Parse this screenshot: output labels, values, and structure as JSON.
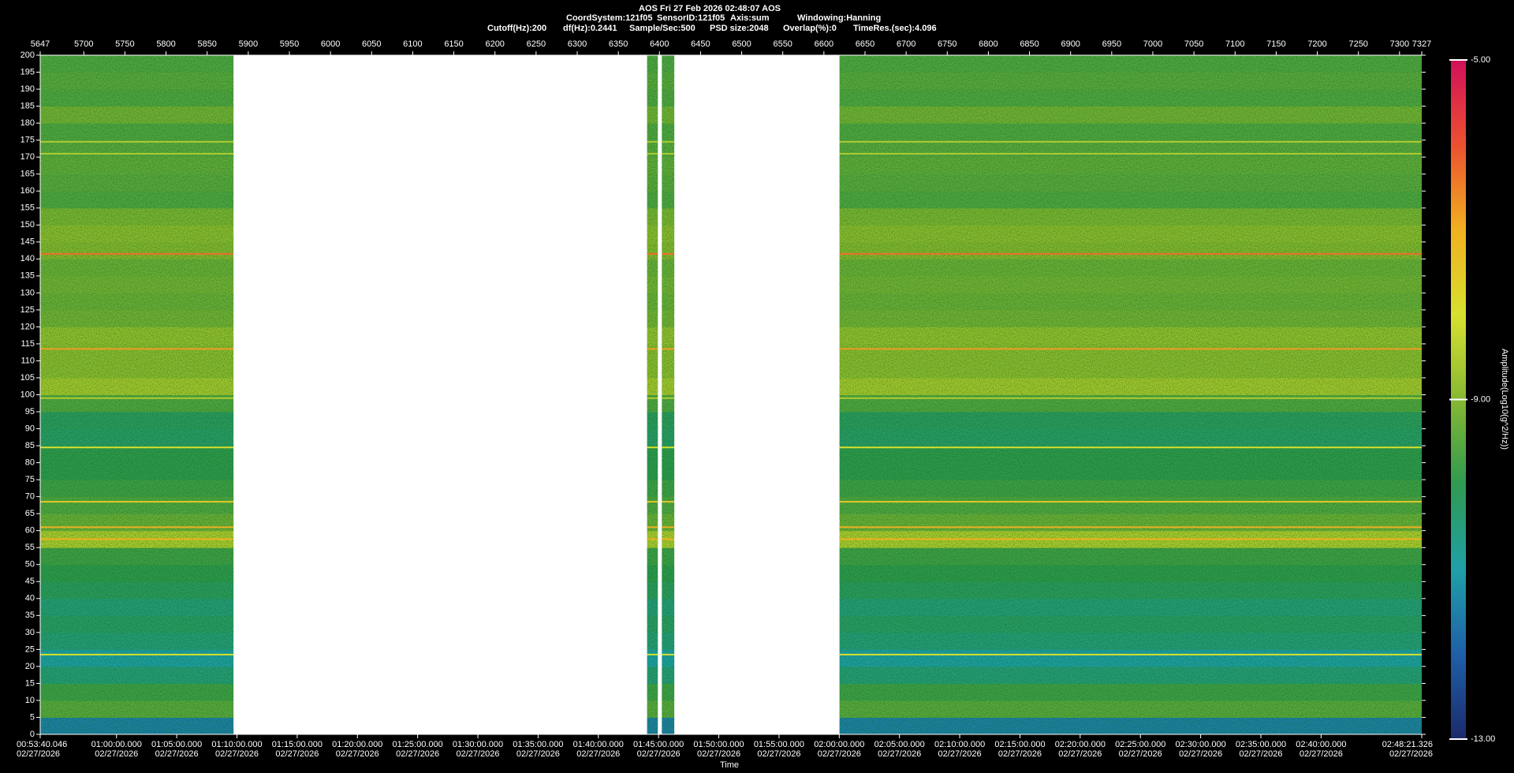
{
  "header": {
    "title": "AOS  Fri 27 Feb 2026 02:48:07  AOS",
    "line2": [
      "CoordSystem:121f05",
      "SensorID:121f05",
      "Axis:sum",
      "Windowing:Hanning"
    ],
    "line3": [
      "Cutoff(Hz):200",
      "df(Hz):0.2441",
      "Sample/Sec:500",
      "PSD size:2048",
      "Overlap(%):0",
      "TimeRes.(sec):4.096"
    ]
  },
  "chart_data": {
    "type": "spectrogram",
    "xlabel": "Time",
    "xlim": [
      5647,
      7327
    ],
    "xticks": [
      5647,
      5700,
      5750,
      5800,
      5850,
      5900,
      5950,
      6000,
      6050,
      6100,
      6150,
      6200,
      6250,
      6300,
      6350,
      6400,
      6450,
      6500,
      6550,
      6600,
      6650,
      6700,
      6750,
      6800,
      6850,
      6900,
      6950,
      7000,
      7050,
      7100,
      7150,
      7200,
      7250,
      7300,
      7327
    ],
    "x2lim": [
      3220.046,
      10101.326
    ],
    "x2ticks": [
      {
        "value": 3220.046,
        "label": "00:53:40.046"
      },
      {
        "value": 3600,
        "label": "01:00:00.000"
      },
      {
        "value": 3900,
        "label": "01:05:00.000"
      },
      {
        "value": 4200,
        "label": "01:10:00.000"
      },
      {
        "value": 4500,
        "label": "01:15:00.000"
      },
      {
        "value": 4800,
        "label": "01:20:00.000"
      },
      {
        "value": 5100,
        "label": "01:25:00.000"
      },
      {
        "value": 5400,
        "label": "01:30:00.000"
      },
      {
        "value": 5700,
        "label": "01:35:00.000"
      },
      {
        "value": 6000,
        "label": "01:40:00.000"
      },
      {
        "value": 6300,
        "label": "01:45:00.000"
      },
      {
        "value": 6600,
        "label": "01:50:00.000"
      },
      {
        "value": 6900,
        "label": "01:55:00.000"
      },
      {
        "value": 7200,
        "label": "02:00:00.000"
      },
      {
        "value": 7500,
        "label": "02:05:00.000"
      },
      {
        "value": 7800,
        "label": "02:10:00.000"
      },
      {
        "value": 8100,
        "label": "02:15:00.000"
      },
      {
        "value": 8400,
        "label": "02:20:00.000"
      },
      {
        "value": 8700,
        "label": "02:25:00.000"
      },
      {
        "value": 9000,
        "label": "02:30:00.000"
      },
      {
        "value": 9300,
        "label": "02:35:00.000"
      },
      {
        "value": 9600,
        "label": "02:40:00.000"
      },
      {
        "value": 10101.326,
        "label": "02:48:21.326"
      }
    ],
    "date_label": "02/27/2026",
    "ylim": [
      0,
      200
    ],
    "yticks": [
      0,
      5,
      10,
      15,
      20,
      25,
      30,
      35,
      40,
      45,
      50,
      55,
      60,
      65,
      70,
      75,
      80,
      85,
      90,
      95,
      100,
      105,
      110,
      115,
      120,
      125,
      130,
      135,
      140,
      145,
      150,
      155,
      160,
      165,
      170,
      175,
      180,
      185,
      190,
      195,
      200
    ],
    "segments": [
      [
        5647,
        5882
      ],
      [
        6385,
        6398
      ],
      [
        6403,
        6418
      ],
      [
        6619,
        7327
      ]
    ],
    "y_bins": [
      0,
      5,
      10,
      15,
      20,
      25,
      30,
      35,
      40,
      45,
      50,
      55,
      60,
      65,
      70,
      75,
      80,
      85,
      90,
      95,
      100,
      105,
      110,
      115,
      120,
      125,
      130,
      135,
      140,
      145,
      150,
      155,
      160,
      165,
      170,
      175,
      180,
      185,
      190,
      195,
      200
    ],
    "levels": [
      -11.5,
      -9.5,
      -9.8,
      -10.5,
      -11,
      -10.5,
      -10.3,
      -10.5,
      -10.2,
      -10,
      -9.8,
      -8.5,
      -9.3,
      -9.6,
      -9.8,
      -10,
      -10,
      -10.3,
      -10.2,
      -9.6,
      -8.6,
      -8.9,
      -8.9,
      -8.8,
      -9.2,
      -9.3,
      -9.2,
      -9.3,
      -9,
      -8.9,
      -9.1,
      -9.6,
      -9.5,
      -9.4,
      -9.5,
      -9.6,
      -9.2,
      -9.6,
      -9.5,
      -9.6
    ],
    "tones": {
      "freq": [
        141.5,
        113.5,
        61,
        57.5,
        68.5,
        84.5,
        99,
        174.5,
        171,
        23.5
      ],
      "level": [
        -6.3,
        -6.8,
        -7,
        -7,
        -7.5,
        -8,
        -8.5,
        -8.5,
        -8.5,
        -8
      ]
    },
    "clim": [
      -13,
      -5
    ],
    "cticks": [
      {
        "value": -13,
        "label": "-13.00"
      },
      {
        "value": -9,
        "label": "-9.00"
      },
      {
        "value": -5,
        "label": "-5.00"
      }
    ],
    "colorbar_label": "Amplitude(Log10(g^2/Hz))",
    "colorscale": [
      "#1b2a6b",
      "#1f5fa8",
      "#1fa0a8",
      "#2f9a50",
      "#86b832",
      "#d8e030",
      "#f0b020",
      "#ec5030",
      "#d0105a"
    ]
  }
}
